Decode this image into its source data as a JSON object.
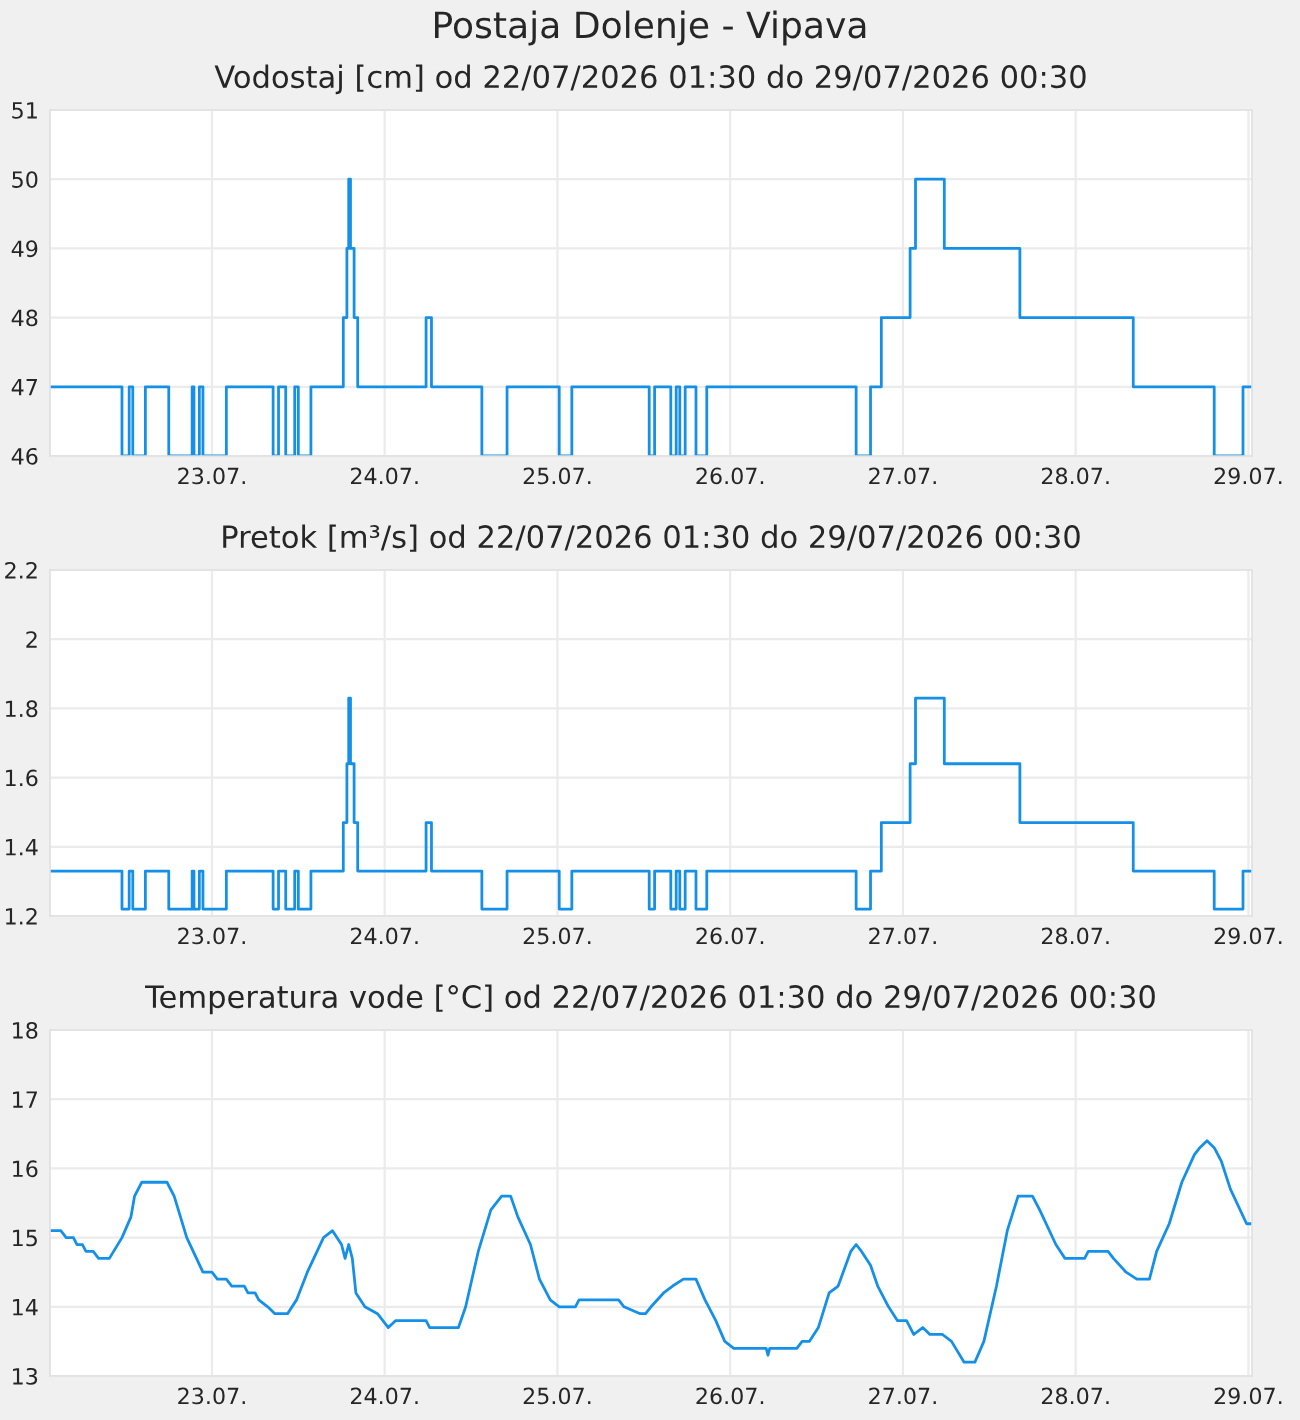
{
  "chart_data": [
    {
      "type": "step",
      "title": "Postaja Dolenje - Vipava",
      "subtitle": "Vodostaj [cm] od 22/07/2026 01:30 do 29/07/2026 00:30",
      "grid": true,
      "xlim": [
        "2026-07-22T01:30",
        "2026-07-29T00:30"
      ],
      "xticks": [
        {
          "value": "2026-07-23",
          "label": "23.07."
        },
        {
          "value": "2026-07-24",
          "label": "24.07."
        },
        {
          "value": "2026-07-25",
          "label": "25.07."
        },
        {
          "value": "2026-07-26",
          "label": "26.07."
        },
        {
          "value": "2026-07-27",
          "label": "27.07."
        },
        {
          "value": "2026-07-28",
          "label": "28.07."
        },
        {
          "value": "2026-07-29",
          "label": "29.07."
        }
      ],
      "ylim": [
        46,
        51
      ],
      "yticks": [
        46,
        47,
        48,
        49,
        50,
        51
      ],
      "series": [
        {
          "color": "#1590e8",
          "x": [
            "2026-07-22T01:30",
            "2026-07-22T11:30",
            "2026-07-22T12:30",
            "2026-07-22T13:00",
            "2026-07-22T14:45",
            "2026-07-22T18:00",
            "2026-07-22T21:15",
            "2026-07-22T21:30",
            "2026-07-22T22:15",
            "2026-07-22T22:45",
            "2026-07-23T02:00",
            "2026-07-23T08:30",
            "2026-07-23T09:15",
            "2026-07-23T10:15",
            "2026-07-23T11:30",
            "2026-07-23T12:00",
            "2026-07-23T13:45",
            "2026-07-23T18:15",
            "2026-07-23T18:45",
            "2026-07-23T19:00",
            "2026-07-23T19:15",
            "2026-07-23T19:45",
            "2026-07-23T20:15",
            "2026-07-24T05:45",
            "2026-07-24T06:30",
            "2026-07-24T13:30",
            "2026-07-24T17:00",
            "2026-07-25T00:15",
            "2026-07-25T02:00",
            "2026-07-25T12:45",
            "2026-07-25T13:30",
            "2026-07-25T15:45",
            "2026-07-25T16:30",
            "2026-07-25T17:00",
            "2026-07-25T17:45",
            "2026-07-25T19:15",
            "2026-07-25T20:45",
            "2026-07-26T17:30",
            "2026-07-26T19:30",
            "2026-07-26T21:00",
            "2026-07-27T01:00",
            "2026-07-27T01:45",
            "2026-07-27T05:45",
            "2026-07-27T16:15",
            "2026-07-28T08:00",
            "2026-07-28T19:15",
            "2026-07-28T23:15",
            "2026-07-29T00:30"
          ],
          "values": [
            47,
            46,
            47,
            46,
            47,
            46,
            47,
            46,
            47,
            46,
            47,
            46,
            47,
            46,
            47,
            46,
            47,
            48,
            49,
            50,
            49,
            48,
            47,
            48,
            47,
            46,
            47,
            46,
            47,
            46,
            47,
            46,
            47,
            46,
            47,
            46,
            47,
            46,
            47,
            48,
            49,
            50,
            49,
            48,
            47,
            46,
            47,
            47
          ]
        }
      ]
    },
    {
      "type": "step",
      "title": "Pretok [m³/s] od 22/07/2026 01:30 do 29/07/2026 00:30",
      "grid": true,
      "xlim": [
        "2026-07-22T01:30",
        "2026-07-29T00:30"
      ],
      "xticks": [
        {
          "value": "2026-07-23",
          "label": "23.07."
        },
        {
          "value": "2026-07-24",
          "label": "24.07."
        },
        {
          "value": "2026-07-25",
          "label": "25.07."
        },
        {
          "value": "2026-07-26",
          "label": "26.07."
        },
        {
          "value": "2026-07-27",
          "label": "27.07."
        },
        {
          "value": "2026-07-28",
          "label": "28.07."
        },
        {
          "value": "2026-07-29",
          "label": "29.07."
        }
      ],
      "ylim": [
        1.2,
        2.2
      ],
      "yticks": [
        1.2,
        1.4,
        1.6,
        1.8,
        2,
        2.2
      ],
      "series": [
        {
          "color": "#1590e8",
          "x": [
            "2026-07-22T01:30",
            "2026-07-22T11:30",
            "2026-07-22T12:30",
            "2026-07-22T13:00",
            "2026-07-22T14:45",
            "2026-07-22T18:00",
            "2026-07-22T21:15",
            "2026-07-22T21:30",
            "2026-07-22T22:15",
            "2026-07-22T22:45",
            "2026-07-23T02:00",
            "2026-07-23T08:30",
            "2026-07-23T09:15",
            "2026-07-23T10:15",
            "2026-07-23T11:30",
            "2026-07-23T12:00",
            "2026-07-23T13:45",
            "2026-07-23T18:15",
            "2026-07-23T18:45",
            "2026-07-23T19:00",
            "2026-07-23T19:15",
            "2026-07-23T19:45",
            "2026-07-23T20:15",
            "2026-07-24T05:45",
            "2026-07-24T06:30",
            "2026-07-24T13:30",
            "2026-07-24T17:00",
            "2026-07-25T00:15",
            "2026-07-25T02:00",
            "2026-07-25T12:45",
            "2026-07-25T13:30",
            "2026-07-25T15:45",
            "2026-07-25T16:30",
            "2026-07-25T17:00",
            "2026-07-25T17:45",
            "2026-07-25T19:15",
            "2026-07-25T20:45",
            "2026-07-26T17:30",
            "2026-07-26T19:30",
            "2026-07-26T21:00",
            "2026-07-27T01:00",
            "2026-07-27T01:45",
            "2026-07-27T05:45",
            "2026-07-27T16:15",
            "2026-07-28T08:00",
            "2026-07-28T19:15",
            "2026-07-28T23:15",
            "2026-07-29T00:30"
          ],
          "values": [
            1.33,
            1.22,
            1.33,
            1.22,
            1.33,
            1.22,
            1.33,
            1.22,
            1.33,
            1.22,
            1.33,
            1.22,
            1.33,
            1.22,
            1.33,
            1.22,
            1.33,
            1.47,
            1.64,
            1.83,
            1.64,
            1.47,
            1.33,
            1.47,
            1.33,
            1.22,
            1.33,
            1.22,
            1.33,
            1.22,
            1.33,
            1.22,
            1.33,
            1.22,
            1.33,
            1.22,
            1.33,
            1.22,
            1.33,
            1.47,
            1.64,
            1.83,
            1.64,
            1.47,
            1.33,
            1.22,
            1.33,
            1.33
          ]
        }
      ]
    },
    {
      "type": "line",
      "title": "Temperatura vode [°C] od 22/07/2026 01:30 do 29/07/2026 00:30",
      "grid": true,
      "xlim": [
        "2026-07-22T01:30",
        "2026-07-29T00:30"
      ],
      "xticks": [
        {
          "value": "2026-07-23",
          "label": "23.07."
        },
        {
          "value": "2026-07-24",
          "label": "24.07."
        },
        {
          "value": "2026-07-25",
          "label": "25.07."
        },
        {
          "value": "2026-07-26",
          "label": "26.07."
        },
        {
          "value": "2026-07-27",
          "label": "27.07."
        },
        {
          "value": "2026-07-28",
          "label": "28.07."
        },
        {
          "value": "2026-07-29",
          "label": "29.07."
        }
      ],
      "ylim": [
        13,
        18
      ],
      "yticks": [
        13,
        14,
        15,
        16,
        17,
        18
      ],
      "series": [
        {
          "color": "#1590e8",
          "x": [
            "2026-07-22T01:30",
            "2026-07-22T03:00",
            "2026-07-22T03:45",
            "2026-07-22T04:45",
            "2026-07-22T05:15",
            "2026-07-22T06:00",
            "2026-07-22T06:30",
            "2026-07-22T07:30",
            "2026-07-22T08:15",
            "2026-07-22T09:45",
            "2026-07-22T11:30",
            "2026-07-22T12:45",
            "2026-07-22T13:15",
            "2026-07-22T14:15",
            "2026-07-22T17:45",
            "2026-07-22T18:45",
            "2026-07-22T20:30",
            "2026-07-22T22:45",
            "2026-07-23T00:00",
            "2026-07-23T00:45",
            "2026-07-23T02:00",
            "2026-07-23T02:45",
            "2026-07-23T04:30",
            "2026-07-23T05:00",
            "2026-07-23T06:00",
            "2026-07-23T06:30",
            "2026-07-23T07:45",
            "2026-07-23T08:45",
            "2026-07-23T10:30",
            "2026-07-23T11:45",
            "2026-07-23T13:15",
            "2026-07-23T15:30",
            "2026-07-23T16:45",
            "2026-07-23T18:00",
            "2026-07-23T18:30",
            "2026-07-23T19:00",
            "2026-07-23T19:30",
            "2026-07-23T20:00",
            "2026-07-23T21:15",
            "2026-07-23T23:00",
            "2026-07-24T00:30",
            "2026-07-24T01:30",
            "2026-07-24T05:45",
            "2026-07-24T06:15",
            "2026-07-24T10:15",
            "2026-07-24T11:15",
            "2026-07-24T13:00",
            "2026-07-24T14:45",
            "2026-07-24T16:15",
            "2026-07-24T17:30",
            "2026-07-24T18:30",
            "2026-07-24T20:15",
            "2026-07-24T21:30",
            "2026-07-24T23:00",
            "2026-07-25T00:15",
            "2026-07-25T02:30",
            "2026-07-25T03:00",
            "2026-07-25T08:30",
            "2026-07-25T09:15",
            "2026-07-25T11:30",
            "2026-07-25T12:15",
            "2026-07-25T13:00",
            "2026-07-25T14:45",
            "2026-07-25T16:00",
            "2026-07-25T17:30",
            "2026-07-25T19:15",
            "2026-07-25T20:30",
            "2026-07-25T22:00",
            "2026-07-25T23:15",
            "2026-07-26T00:30",
            "2026-07-26T05:00",
            "2026-07-26T05:15",
            "2026-07-26T05:30",
            "2026-07-26T09:15",
            "2026-07-26T10:00",
            "2026-07-26T11:00",
            "2026-07-26T12:15",
            "2026-07-26T13:45",
            "2026-07-26T15:00",
            "2026-07-26T16:45",
            "2026-07-26T17:30",
            "2026-07-26T18:15",
            "2026-07-26T19:30",
            "2026-07-26T20:30",
            "2026-07-26T22:00",
            "2026-07-26T23:15",
            "2026-07-27T00:30",
            "2026-07-27T01:30",
            "2026-07-27T02:45",
            "2026-07-27T03:45",
            "2026-07-27T05:30",
            "2026-07-27T06:45",
            "2026-07-27T08:30",
            "2026-07-27T10:00",
            "2026-07-27T11:15",
            "2026-07-27T13:00",
            "2026-07-27T14:30",
            "2026-07-27T16:00",
            "2026-07-27T18:00",
            "2026-07-27T19:00",
            "2026-07-27T21:15",
            "2026-07-27T22:30",
            "2026-07-28T01:15",
            "2026-07-28T01:45",
            "2026-07-28T04:30",
            "2026-07-28T05:15",
            "2026-07-28T07:00",
            "2026-07-28T08:30",
            "2026-07-28T10:15",
            "2026-07-28T11:15",
            "2026-07-28T13:00",
            "2026-07-28T14:45",
            "2026-07-28T16:30",
            "2026-07-28T17:15",
            "2026-07-28T18:15",
            "2026-07-28T19:15",
            "2026-07-28T20:15",
            "2026-07-28T21:30",
            "2026-07-28T23:45",
            "2026-07-29T00:30"
          ],
          "values": [
            15.1,
            15.1,
            15.0,
            15.0,
            14.9,
            14.9,
            14.8,
            14.8,
            14.7,
            14.7,
            15.0,
            15.3,
            15.6,
            15.8,
            15.8,
            15.6,
            15.0,
            14.5,
            14.5,
            14.4,
            14.4,
            14.3,
            14.3,
            14.2,
            14.2,
            14.1,
            14.0,
            13.9,
            13.9,
            14.1,
            14.5,
            15.0,
            15.1,
            14.9,
            14.7,
            14.9,
            14.7,
            14.2,
            14.0,
            13.9,
            13.7,
            13.8,
            13.8,
            13.7,
            13.7,
            14.0,
            14.8,
            15.4,
            15.6,
            15.6,
            15.3,
            14.9,
            14.4,
            14.1,
            14.0,
            14.0,
            14.1,
            14.1,
            14.0,
            13.9,
            13.9,
            14.0,
            14.2,
            14.3,
            14.4,
            14.4,
            14.1,
            13.8,
            13.5,
            13.4,
            13.4,
            13.3,
            13.4,
            13.4,
            13.5,
            13.5,
            13.7,
            14.2,
            14.3,
            14.8,
            14.9,
            14.8,
            14.6,
            14.3,
            14.0,
            13.8,
            13.8,
            13.6,
            13.7,
            13.6,
            13.6,
            13.5,
            13.2,
            13.2,
            13.5,
            14.3,
            15.1,
            15.6,
            15.6,
            15.4,
            14.9,
            14.7,
            14.7,
            14.8,
            14.8,
            14.7,
            14.5,
            14.4,
            14.4,
            14.8,
            15.2,
            15.8,
            16.2,
            16.3,
            16.4,
            16.3,
            16.1,
            15.7,
            15.2,
            15.2
          ]
        }
      ]
    }
  ]
}
